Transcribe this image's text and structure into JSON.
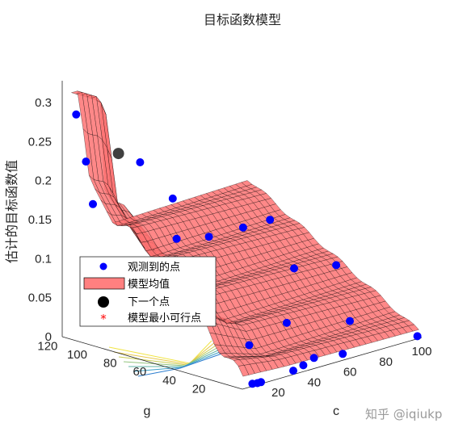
{
  "chart_data": {
    "type": "surface3d",
    "title": "目标函数模型",
    "xlabel": "c",
    "ylabel": "g",
    "zlabel": "估计的目标函数值",
    "xlim": [
      0,
      100
    ],
    "ylim": [
      0,
      120
    ],
    "zlim": [
      0,
      0.33
    ],
    "x_ticks": [
      "20",
      "40",
      "60",
      "80",
      "100"
    ],
    "y_ticks": [
      "20",
      "40",
      "60",
      "80",
      "100",
      "120"
    ],
    "z_ticks": [
      "0",
      "0.05",
      "0.1",
      "0.15",
      "0.2",
      "0.25",
      "0.3"
    ],
    "surface_color": "#ff7373",
    "legend": {
      "position": "inside-left",
      "entries": [
        {
          "label": "观测到的点",
          "marker": "blue-dot",
          "color": "#0000ff"
        },
        {
          "label": "模型均值",
          "marker": "surface-patch",
          "color": "#ff8080"
        },
        {
          "label": "下一个点",
          "marker": "black-dot",
          "color": "#000000"
        },
        {
          "label": "模型最小可行点",
          "marker": "red-asterisk",
          "color": "#ff0000"
        }
      ]
    },
    "observed_points": [
      {
        "c": 3,
        "g": 118,
        "z": 0.31
      },
      {
        "c": 2,
        "g": 110,
        "z": 0.25
      },
      {
        "c": 1,
        "g": 104,
        "z": 0.195
      },
      {
        "c": 20,
        "g": 95,
        "z": 0.245
      },
      {
        "c": 22,
        "g": 75,
        "z": 0.205
      },
      {
        "c": 12,
        "g": 60,
        "z": 0.165
      },
      {
        "c": 30,
        "g": 60,
        "z": 0.155
      },
      {
        "c": 45,
        "g": 55,
        "z": 0.16
      },
      {
        "c": 60,
        "g": 55,
        "z": 0.16
      },
      {
        "c": 15,
        "g": 40,
        "z": 0.1
      },
      {
        "c": 58,
        "g": 36,
        "z": 0.105
      },
      {
        "c": 75,
        "g": 28,
        "z": 0.102
      },
      {
        "c": 20,
        "g": 20,
        "z": 0.035
      },
      {
        "c": 45,
        "g": 25,
        "z": 0.045
      },
      {
        "c": 68,
        "g": 10,
        "z": 0.04
      },
      {
        "c": 100,
        "g": 3,
        "z": 0.0
      },
      {
        "c": 48,
        "g": 10,
        "z": 0.003
      },
      {
        "c": 60,
        "g": 5,
        "z": 0.003
      },
      {
        "c": 38,
        "g": 5,
        "z": 0.003
      },
      {
        "c": 30,
        "g": 2,
        "z": 0.003
      },
      {
        "c": 8,
        "g": 3,
        "z": 0.0
      },
      {
        "c": 10,
        "g": 2,
        "z": 0.0
      },
      {
        "c": 12,
        "g": 2,
        "z": 0.0
      }
    ],
    "next_point": {
      "c": 12,
      "g": 100,
      "z": 0.26
    },
    "watermark": "知乎 @iqiukp"
  }
}
